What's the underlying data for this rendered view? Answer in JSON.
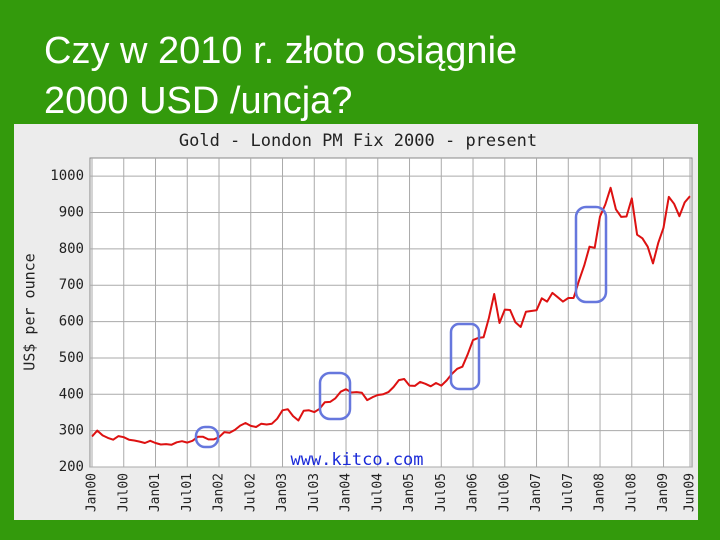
{
  "slide": {
    "title_lines": [
      "Czy w 2010 r. złoto osiągnie",
      "2000 USD /uncja?"
    ]
  },
  "chart_data": {
    "type": "line",
    "title": "Gold - London PM Fix 2000 - present",
    "y_label": "US$ per ounce",
    "watermark": "www.kitco.com",
    "xlim": [
      "Jan00",
      "Jun09"
    ],
    "xticks": [
      "Jan00",
      "Jul00",
      "Jan01",
      "Jul01",
      "Jan02",
      "Jul02",
      "Jan03",
      "Jul03",
      "Jan04",
      "Jul04",
      "Jan05",
      "Jul05",
      "Jan06",
      "Jul06",
      "Jan07",
      "Jul07",
      "Jan08",
      "Jul08",
      "Jan09",
      "Jun09"
    ],
    "ylim": [
      200,
      1050
    ],
    "yticks": [
      200,
      300,
      400,
      500,
      600,
      700,
      800,
      900,
      1000
    ],
    "grid": true,
    "series": [
      {
        "name": "Gold",
        "color": "#dd1111",
        "x": [
          "Jan00",
          "Feb00",
          "Mar00",
          "Apr00",
          "May00",
          "Jun00",
          "Jul00",
          "Aug00",
          "Sep00",
          "Oct00",
          "Nov00",
          "Dec00",
          "Jan01",
          "Feb01",
          "Mar01",
          "Apr01",
          "May01",
          "Jun01",
          "Jul01",
          "Aug01",
          "Sep01",
          "Oct01",
          "Nov01",
          "Dec01",
          "Jan02",
          "Feb02",
          "Mar02",
          "Apr02",
          "May02",
          "Jun02",
          "Jul02",
          "Aug02",
          "Sep02",
          "Oct02",
          "Nov02",
          "Dec02",
          "Jan03",
          "Feb03",
          "Mar03",
          "Apr03",
          "May03",
          "Jun03",
          "Jul03",
          "Aug03",
          "Sep03",
          "Oct03",
          "Nov03",
          "Dec03",
          "Jan04",
          "Feb04",
          "Mar04",
          "Apr04",
          "May04",
          "Jun04",
          "Jul04",
          "Aug04",
          "Sep04",
          "Oct04",
          "Nov04",
          "Dec04",
          "Jan05",
          "Feb05",
          "Mar05",
          "Apr05",
          "May05",
          "Jun05",
          "Jul05",
          "Aug05",
          "Sep05",
          "Oct05",
          "Nov05",
          "Dec05",
          "Jan06",
          "Feb06",
          "Mar06",
          "Apr06",
          "May06",
          "Jun06",
          "Jul06",
          "Aug06",
          "Sep06",
          "Oct06",
          "Nov06",
          "Dec06",
          "Jan07",
          "Feb07",
          "Mar07",
          "Apr07",
          "May07",
          "Jun07",
          "Jul07",
          "Aug07",
          "Sep07",
          "Oct07",
          "Nov07",
          "Dec07",
          "Jan08",
          "Feb08",
          "Mar08",
          "Apr08",
          "May08",
          "Jun08",
          "Jul08",
          "Aug08",
          "Sep08",
          "Oct08",
          "Nov08",
          "Dec08",
          "Jan09",
          "Feb09",
          "Mar09",
          "Apr09",
          "May09",
          "Jun09"
        ],
        "values": [
          284,
          300,
          287,
          280,
          275,
          285,
          282,
          275,
          273,
          270,
          266,
          272,
          266,
          262,
          263,
          261,
          268,
          271,
          267,
          272,
          283,
          283,
          276,
          276,
          282,
          296,
          294,
          302,
          314,
          321,
          313,
          310,
          319,
          317,
          319,
          333,
          356,
          359,
          340,
          328,
          355,
          356,
          351,
          360,
          378,
          379,
          389,
          407,
          414,
          405,
          406,
          404,
          384,
          392,
          398,
          400,
          406,
          420,
          439,
          442,
          424,
          423,
          434,
          429,
          422,
          431,
          424,
          438,
          456,
          470,
          476,
          510,
          549,
          555,
          557,
          610,
          676,
          596,
          633,
          632,
          598,
          585,
          627,
          629,
          631,
          664,
          655,
          679,
          667,
          655,
          665,
          665,
          712,
          754,
          806,
          803,
          889,
          922,
          968,
          909,
          888,
          889,
          939,
          839,
          829,
          806,
          760,
          816,
          858,
          943,
          924,
          890,
          928,
          945
        ]
      }
    ]
  }
}
